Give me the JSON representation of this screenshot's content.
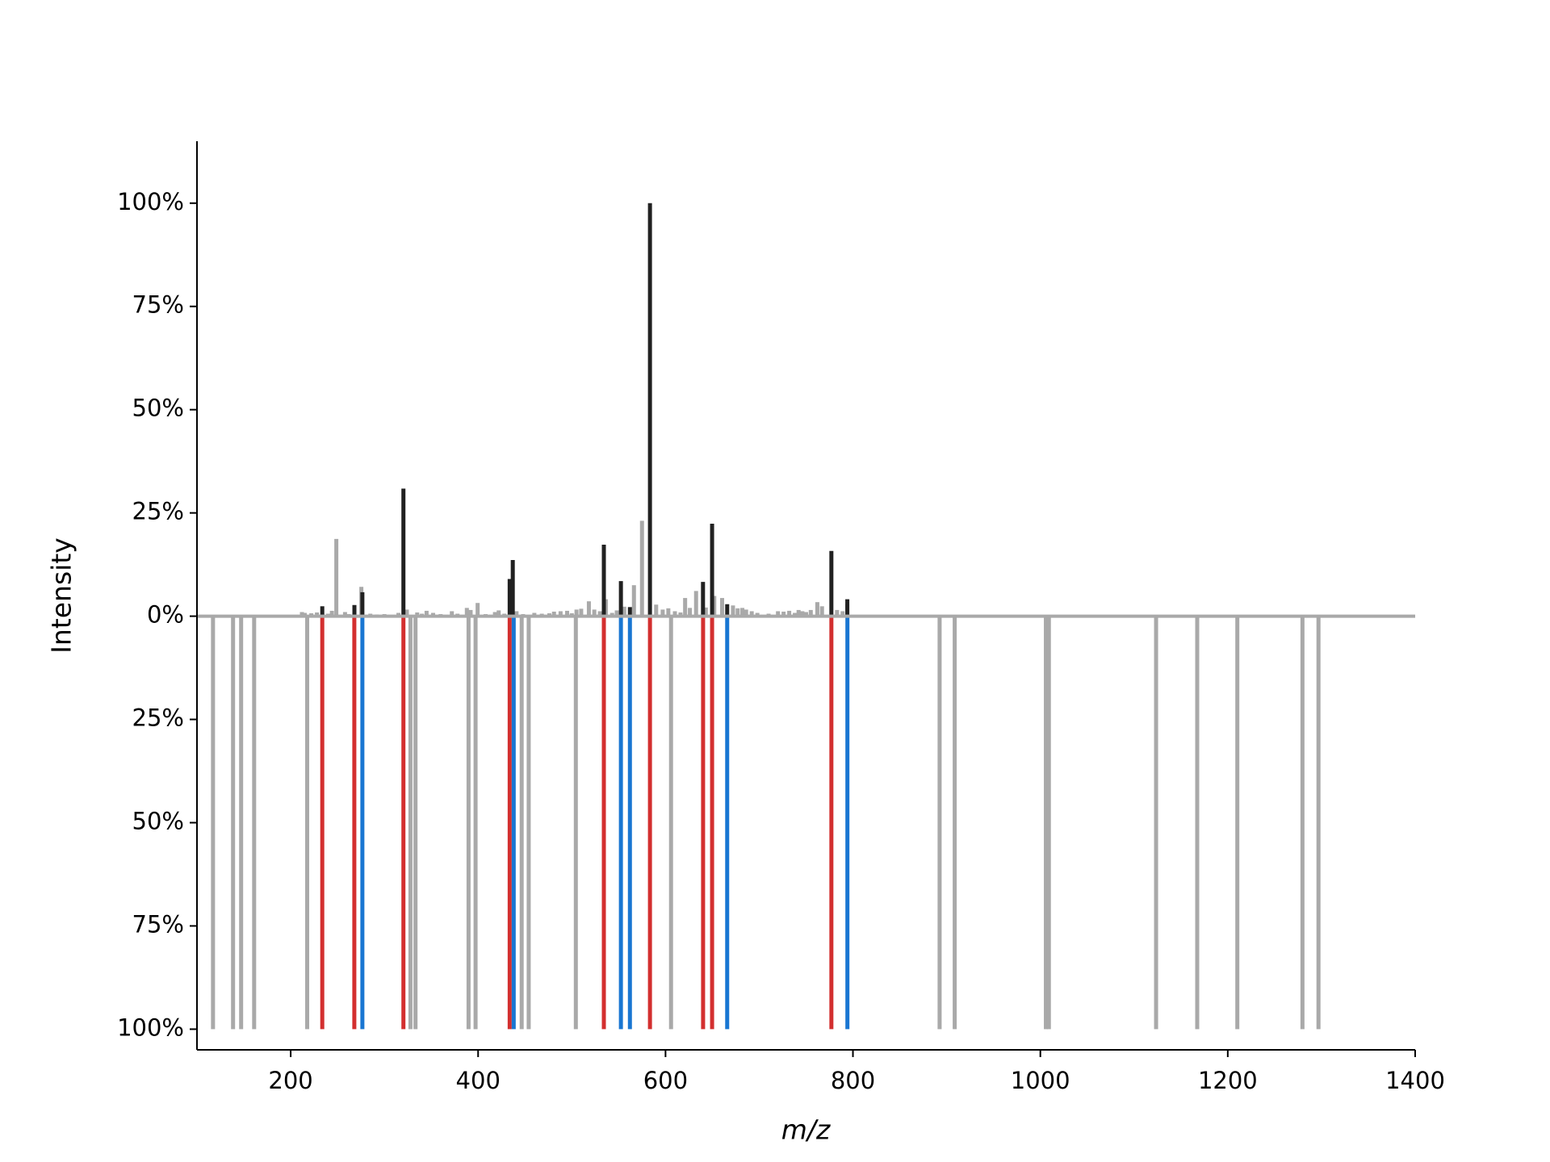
{
  "chart_data": {
    "type": "mirror",
    "xlabel": "m/z",
    "ylabel": "Intensity",
    "xlim": [
      100,
      1400
    ],
    "xticks": [
      200,
      400,
      600,
      800,
      1000,
      1200,
      1400
    ],
    "ylim": [
      -105,
      115
    ],
    "yticks": [
      {
        "value": -100,
        "label": "100%"
      },
      {
        "value": -75,
        "label": "75%"
      },
      {
        "value": -50,
        "label": "50%"
      },
      {
        "value": -25,
        "label": "25%"
      },
      {
        "value": 0,
        "label": "0%"
      },
      {
        "value": 25,
        "label": "25%"
      },
      {
        "value": 50,
        "label": "50%"
      },
      {
        "value": 75,
        "label": "75%"
      },
      {
        "value": 100,
        "label": "100%"
      }
    ],
    "series": [
      {
        "color": "#a9a9a9",
        "x": [
          212,
          215,
          222,
          228,
          240,
          244,
          248.7,
          258,
          262,
          275.4,
          285,
          292,
          300,
          315,
          324,
          335,
          340,
          345,
          352,
          360,
          372,
          378,
          388,
          392,
          399.5,
          408,
          418,
          422,
          428,
          441,
          448,
          460,
          468,
          476,
          481,
          488,
          495,
          500,
          505,
          510,
          518.2,
          524,
          530,
          536.4,
          543,
          548,
          556,
          566.3,
          574.9,
          590,
          597,
          603,
          610,
          616,
          620.9,
          626,
          632.6,
          643,
          652,
          660.4,
          672,
          677,
          682,
          686,
          692,
          698,
          710,
          720,
          726,
          732,
          738,
          742,
          746,
          750,
          755,
          762,
          767,
          783,
          789,
          794
        ],
        "values": [
          1.0,
          0.8,
          0.7,
          0.9,
          0.6,
          1.3,
          18.7,
          1.0,
          0.5,
          7.1,
          0.6,
          0.4,
          0.5,
          0.8,
          1.6,
          0.9,
          0.6,
          1.3,
          0.8,
          0.5,
          1.2,
          0.6,
          2.0,
          1.5,
          3.2,
          0.5,
          1.0,
          1.4,
          0.6,
          1.2,
          0.5,
          0.8,
          0.6,
          0.7,
          1.1,
          1.2,
          1.3,
          0.7,
          1.6,
          1.8,
          3.6,
          1.6,
          1.2,
          4.1,
          0.8,
          1.4,
          2.3,
          7.5,
          23.1,
          2.8,
          1.6,
          1.9,
          1.2,
          0.9,
          4.4,
          2.0,
          6.1,
          2.1,
          4.9,
          4.4,
          2.6,
          1.9,
          2.0,
          1.6,
          1.2,
          0.8,
          0.6,
          1.2,
          1.1,
          1.3,
          0.8,
          1.5,
          1.2,
          1.0,
          1.5,
          3.4,
          2.4,
          1.5,
          1.2,
          2.9
        ]
      },
      {
        "color": "#212121",
        "x": [
          233.7,
          268,
          276.5,
          320.3,
          433.7,
          437,
          534.2,
          552.4,
          562,
          583.4,
          640,
          649.7,
          665.8,
          777,
          794
        ],
        "values": [
          2.4,
          2.7,
          5.8,
          30.9,
          9.0,
          13.6,
          17.3,
          8.5,
          2.2,
          100,
          8.3,
          22.4,
          2.9,
          15.8,
          4.1
        ]
      },
      {
        "color": "#a9a9a9",
        "x": [
          117.1,
          138.5,
          147.1,
          161.0,
          217.6,
          327.8,
          333.2,
          389.8,
          397.3,
          446.5,
          454.0,
          504.3,
          605.9,
          892.5,
          908.6,
          1005.9,
          1009.1,
          1123.5,
          1167.4,
          1210.2,
          1279.7,
          1296.8
        ],
        "values": [
          -100,
          -100,
          -100,
          -100,
          -100,
          -100,
          -100,
          -100,
          -100,
          -100,
          -100,
          -100,
          -100,
          -100,
          -100,
          -100,
          -100,
          -100,
          -100,
          -100,
          -100,
          -100
        ]
      },
      {
        "color": "#d32f2f",
        "x": [
          233.7,
          267.9,
          320.3,
          433.7,
          534.2,
          583.4,
          640.1,
          649.7,
          777.0
        ],
        "values": [
          -100,
          -100,
          -100,
          -100,
          -100,
          -100,
          -100,
          -100,
          -100
        ]
      },
      {
        "color": "#1976d2",
        "x": [
          276.5,
          438.0,
          552.4,
          562.0,
          665.8,
          794.1
        ],
        "values": [
          -100,
          -100,
          -100,
          -100,
          -100,
          -100
        ]
      }
    ]
  }
}
